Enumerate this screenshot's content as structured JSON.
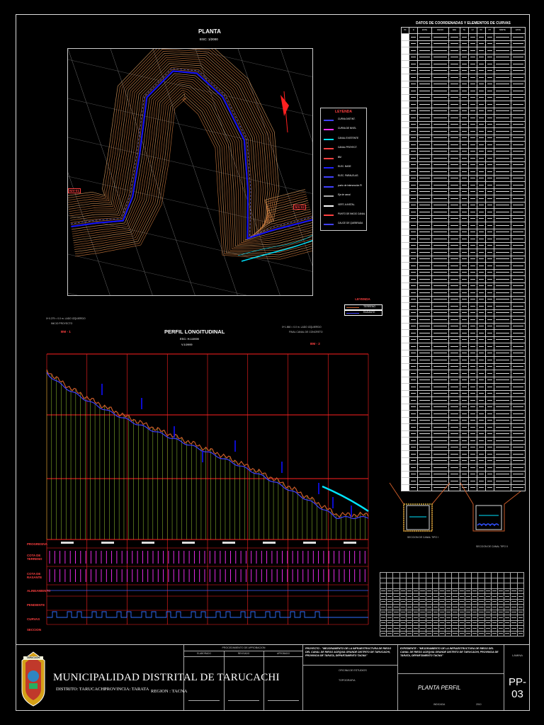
{
  "plan": {
    "title": "PLANTA",
    "scale": "ESC: 1/2000",
    "legend_title": "LEYENDA",
    "legend_items": [
      "CURVA DISTINT.",
      "CURVA DE NIVEL",
      "CANAL EXISTENTE",
      "CANAL PROYECT.",
      "BM",
      "ELEC. BASE",
      "ELEC. PARALELAS",
      "punto de intersección PI",
      "Eje de canal",
      "VERT. A INSTAL.",
      "PUNTO DE INICIO CANAL",
      "CAUCE DE QUEBRADA"
    ],
    "marker_left": "NIV-01",
    "marker_right": "NIV-02"
  },
  "coord_table": {
    "title": "DATOS DE COORDENADAS Y ELEMENTOS DE CURVAS",
    "headers": [
      "PI",
      "N",
      "ESTE",
      "RADIO",
      "ANG",
      "TG",
      "LC",
      "PC",
      "PT",
      "NORTE",
      "ESTE"
    ]
  },
  "profile": {
    "title": "PERFIL LONGITUDINAL",
    "scale_h": "ESC: H.1/2000",
    "scale_v": "V.1/2000",
    "top_left_note": "0+0.279 = 0.0 m. LADO IZQUIERDO",
    "top_left_note2": "INICIO PROYECTO",
    "top_right_note": "0+1.860 = 0.0 m. LADO IZQUIERDO",
    "top_right_note2": "FINAL CANAL DE CONCRETO",
    "bm_left": "BM - 1",
    "bm_right": "BM - 2",
    "row_labels": [
      "PROGRESIVA",
      "COTA DE TERRENO",
      "COTA DE RASANTE",
      "ALINEAMIENTO",
      "PENDIENTE",
      "CURVAS",
      "SECCION"
    ]
  },
  "legend2": {
    "title": "LEYENDA",
    "item1": "TERRENO",
    "item2": "RASANTE"
  },
  "canal": {
    "label1": "SECCION DE CANAL TIPO I",
    "label2": "SECCION DE CANAL TIPO II"
  },
  "titleblock": {
    "municipality": "MUNICIPALIDAD DISTRITAL DE TARUCACHI",
    "distrito": "DISTRITO: TARUCACHI",
    "provincia": "PROVINCIA: TARATA",
    "region": "REGION : TACNA",
    "logo_text": "TARUCACHI",
    "procedimiento": "PROCEDIMIENTO DE APROBACION",
    "elaborado": "ELABORADO",
    "revisado": "REVISADO",
    "aprobado": "APROBADO",
    "proyecto_label": "PROYECTO :",
    "proyecto": "\"MEJORAMIENTO DE LA INFRAESTRUCTURA DE RIEGO DEL CANAL DE RIEGO ACEQUIA GRANDE DISTRITO DE TARUCACHI, PROVINCIA DE TARATA, DEPARTAMENTO TACNA\"",
    "expediente_label": "EXPEDIENTE :",
    "expediente": "\"MEJORAMIENTO DE LA INFRAESTRUCTURA DE RIEGO DEL CANAL DE RIEGO ACEQUIA GRANDE DISTRITO DE TARUCACHI, PROVINCIA DE TARATA, DEPARTAMENTO TACNA\"",
    "oficina": "OFICINA DE ESTUDIOS",
    "topografia": "TOPOGRAFIA",
    "plano": "PLANTA PERFIL",
    "lamina_label": "LAMINA",
    "lamina": "PP-03",
    "escala": "INDICADA",
    "fecha": "2010"
  },
  "colors": {
    "terrain": "#c85a28",
    "rasante": "#4040ff",
    "grid_red": "#ff2020",
    "stations": "#9acd32",
    "contour": "#c8783c",
    "canal_blue": "#1010ff",
    "cyan": "#00e5ff",
    "magenta": "#ff30ff"
  }
}
